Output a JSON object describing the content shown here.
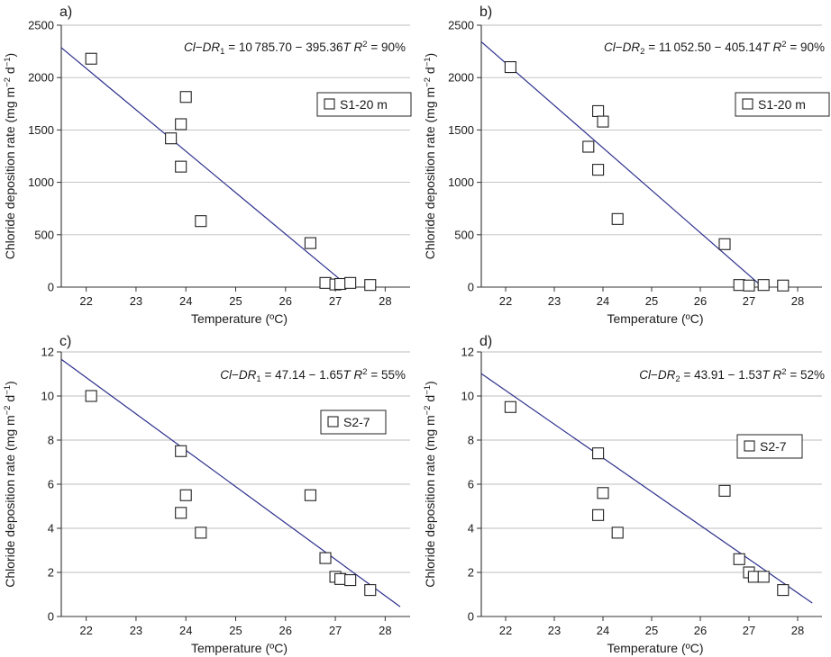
{
  "chart_data": [
    {
      "type": "scatter",
      "panel_label": "a)",
      "equation": "Cl−DR₁ = 10 785.70 − 395.36T  R² = 90%",
      "legend": [
        "S1-20 m"
      ],
      "xlabel": "Temperature (ºC)",
      "ylabel": "Chloride deposition rate (mg m⁻² d⁻¹)",
      "xlim": [
        21.5,
        28.5
      ],
      "ylim": [
        0,
        2500
      ],
      "xticks": [
        22,
        23,
        24,
        25,
        26,
        27,
        28
      ],
      "yticks": [
        0,
        500,
        1000,
        1500,
        2000,
        2500
      ],
      "grid": "horizontal",
      "legend_position": "top-right",
      "series": [
        {
          "name": "S1-20 m",
          "x": [
            22.1,
            23.7,
            23.9,
            23.9,
            24.0,
            24.3,
            26.5,
            26.8,
            27.0,
            27.1,
            27.3,
            27.7
          ],
          "y": [
            2180,
            1420,
            1555,
            1150,
            1815,
            630,
            420,
            40,
            25,
            30,
            40,
            20
          ]
        }
      ],
      "fit": {
        "intercept": 10785.7,
        "slope": -395.36,
        "x_range": [
          21.5,
          27.28
        ]
      }
    },
    {
      "type": "scatter",
      "panel_label": "b)",
      "equation": "Cl−DR₂ = 11 052.50 − 405.14T  R² = 90%",
      "legend": [
        "S1-20 m"
      ],
      "xlabel": "Temperature (ºC)",
      "ylabel": "Chloride deposition rate (mg m⁻² d⁻¹)",
      "xlim": [
        21.5,
        28.5
      ],
      "ylim": [
        0,
        2500
      ],
      "xticks": [
        22,
        23,
        24,
        25,
        26,
        27,
        28
      ],
      "yticks": [
        0,
        500,
        1000,
        1500,
        2000,
        2500
      ],
      "grid": "horizontal",
      "legend_position": "top-right",
      "series": [
        {
          "name": "S1-20 m",
          "x": [
            22.1,
            23.7,
            23.9,
            23.9,
            24.0,
            24.3,
            26.5,
            26.8,
            27.0,
            27.3,
            27.7
          ],
          "y": [
            2100,
            1340,
            1680,
            1120,
            1580,
            650,
            410,
            20,
            15,
            20,
            15
          ]
        }
      ],
      "fit": {
        "intercept": 11052.5,
        "slope": -405.14,
        "x_range": [
          21.5,
          27.28
        ]
      }
    },
    {
      "type": "scatter",
      "panel_label": "c)",
      "equation": "Cl−DR₁ = 47.14 − 1.65T  R² = 55%",
      "legend": [
        "S2-7"
      ],
      "xlabel": "Temperature (ºC)",
      "ylabel": "Chloride deposition rate (mg m⁻² d⁻¹)",
      "xlim": [
        21.5,
        28.5
      ],
      "ylim": [
        0,
        12
      ],
      "xticks": [
        22,
        23,
        24,
        25,
        26,
        27,
        28
      ],
      "yticks": [
        0,
        2,
        4,
        6,
        8,
        10,
        12
      ],
      "grid": "horizontal",
      "legend_position": "top-right",
      "series": [
        {
          "name": "S2-7",
          "x": [
            22.1,
            23.9,
            23.9,
            24.0,
            24.3,
            26.5,
            26.8,
            27.0,
            27.1,
            27.3,
            27.7
          ],
          "y": [
            10.0,
            7.5,
            4.7,
            5.5,
            3.8,
            5.5,
            2.65,
            1.8,
            1.7,
            1.65,
            1.2
          ]
        }
      ],
      "fit": {
        "intercept": 47.14,
        "slope": -1.65,
        "x_range": [
          21.5,
          28.3
        ]
      }
    },
    {
      "type": "scatter",
      "panel_label": "d)",
      "equation": "Cl−DR₂ = 43.91 − 1.53T  R² = 52%",
      "legend": [
        "S2-7"
      ],
      "xlabel": "Temperature (ºC)",
      "ylabel": "Chloride deposition rate (mg m⁻² d⁻¹)",
      "xlim": [
        21.5,
        28.5
      ],
      "ylim": [
        0,
        12
      ],
      "xticks": [
        22,
        23,
        24,
        25,
        26,
        27,
        28
      ],
      "yticks": [
        0,
        2,
        4,
        6,
        8,
        10,
        12
      ],
      "grid": "horizontal",
      "legend_position": "top-right",
      "series": [
        {
          "name": "S2-7",
          "x": [
            22.1,
            23.9,
            23.9,
            24.0,
            24.3,
            26.5,
            26.8,
            27.0,
            27.1,
            27.3,
            27.7
          ],
          "y": [
            9.5,
            7.4,
            4.6,
            5.6,
            3.8,
            5.7,
            2.6,
            2.0,
            1.8,
            1.8,
            1.2
          ]
        }
      ],
      "fit": {
        "intercept": 43.91,
        "slope": -1.53,
        "x_range": [
          21.5,
          28.3
        ]
      }
    }
  ]
}
